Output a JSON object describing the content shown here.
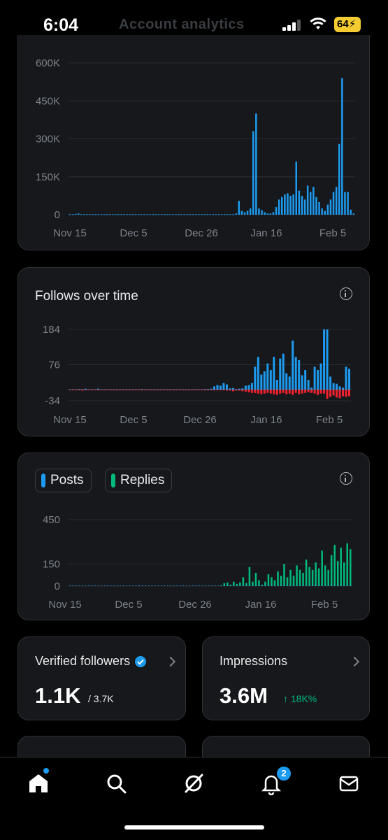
{
  "status": {
    "time": "6:04",
    "ghost_title": "Account analytics",
    "battery": "64"
  },
  "colors": {
    "blue": "#1d9bf0",
    "red": "#f4212e",
    "green": "#00ba7c",
    "grid": "#2a2d31"
  },
  "impressions_chart": {
    "y_ticks": [
      "600K",
      "450K",
      "300K",
      "150K",
      "0"
    ],
    "x_ticks": [
      "Nov 15",
      "Dec 5",
      "Dec 26",
      "Jan 16",
      "Feb 5"
    ]
  },
  "follows_card": {
    "title": "Follows over time",
    "y_ticks": [
      "184",
      "76",
      "-34"
    ],
    "x_ticks": [
      "Nov 15",
      "Dec 5",
      "Dec 26",
      "Jan 16",
      "Feb 5"
    ]
  },
  "posts_card": {
    "legend_posts": "Posts",
    "legend_replies": "Replies",
    "y_ticks": [
      "450",
      "150",
      "0"
    ],
    "x_ticks": [
      "Nov 15",
      "Dec 5",
      "Dec 26",
      "Jan 16",
      "Feb 5"
    ]
  },
  "verified_card": {
    "title": "Verified followers",
    "value": "1.1K",
    "sub": "/ 3.7K"
  },
  "impressions_card": {
    "title": "Impressions",
    "value": "3.6M",
    "change": "↑ 18K%"
  },
  "nav": {
    "notification_count": "2"
  },
  "chart_data": [
    {
      "type": "bar",
      "series": [
        {
          "values": [
            2,
            2,
            3,
            5,
            2,
            2,
            2,
            2,
            2,
            2,
            2,
            2,
            2,
            2,
            2,
            2,
            2,
            2,
            2,
            2,
            2,
            2,
            2,
            2,
            2,
            2,
            2,
            2,
            2,
            2,
            2,
            2,
            2,
            2,
            2,
            2,
            2,
            2,
            2,
            2,
            2,
            2,
            2,
            2,
            2,
            2,
            2,
            2,
            2,
            2,
            2,
            2,
            2,
            2,
            2,
            2,
            2,
            2,
            5,
            55,
            15,
            10,
            15,
            25,
            330,
            400,
            25,
            18,
            10,
            5,
            5,
            10,
            30,
            60,
            70,
            80,
            85,
            75,
            80,
            210,
            95,
            75,
            60,
            115,
            90,
            110,
            70,
            50,
            25,
            15,
            40,
            60,
            90,
            110,
            280,
            540,
            90,
            90,
            20,
            5
          ]
        }
      ],
      "ylim": [
        0,
        600000
      ],
      "yunit": "K",
      "x_ticks": [
        "Nov 15",
        "Dec 5",
        "Dec 26",
        "Jan 16",
        "Feb 5"
      ]
    },
    {
      "type": "bar",
      "series": [
        {
          "name": "gained",
          "values": [
            1,
            1,
            1,
            2,
            1,
            3,
            1,
            1,
            1,
            3,
            1,
            1,
            1,
            1,
            1,
            1,
            1,
            1,
            1,
            1,
            1,
            1,
            1,
            2,
            1,
            1,
            1,
            1,
            1,
            1,
            1,
            1,
            1,
            1,
            1,
            1,
            1,
            1,
            1,
            1,
            1,
            1,
            1,
            2,
            2,
            3,
            10,
            14,
            12,
            20,
            16,
            4,
            5,
            2,
            3,
            4,
            12,
            14,
            20,
            70,
            100,
            46,
            56,
            80,
            60,
            100,
            30,
            95,
            110,
            50,
            40,
            150,
            100,
            90,
            44,
            60,
            30,
            6,
            70,
            60,
            80,
            184,
            184,
            40,
            20,
            18,
            10,
            6,
            70,
            64
          ]
        },
        {
          "name": "lost",
          "values": [
            -2,
            -2,
            -2,
            -2,
            -3,
            -2,
            -2,
            -2,
            -2,
            -2,
            -2,
            -2,
            -2,
            -2,
            -2,
            -2,
            -2,
            -2,
            -2,
            -2,
            -2,
            -2,
            -2,
            -2,
            -2,
            -2,
            -2,
            -2,
            -2,
            -2,
            -2,
            -2,
            -2,
            -2,
            -2,
            -2,
            -2,
            -2,
            -2,
            -2,
            -2,
            -2,
            -2,
            -2,
            -2,
            -2,
            -2,
            -2,
            -2,
            -2,
            -3,
            -3,
            -5,
            -3,
            -3,
            -5,
            -6,
            -8,
            -10,
            -10,
            -12,
            -14,
            -12,
            -10,
            -12,
            -14,
            -16,
            -12,
            -10,
            -14,
            -12,
            -16,
            -10,
            -14,
            -12,
            -10,
            -8,
            -10,
            -12,
            -16,
            -12,
            -12,
            -28,
            -22,
            -18,
            -24,
            -26,
            -20,
            -22,
            -20
          ]
        }
      ],
      "yticks": [
        184,
        76,
        -34
      ],
      "x_ticks": [
        "Nov 15",
        "Dec 5",
        "Dec 26",
        "Jan 16",
        "Feb 5"
      ]
    },
    {
      "type": "bar",
      "series": [
        {
          "name": "Posts",
          "values": [
            2,
            2,
            1,
            2,
            1,
            2,
            1,
            1,
            1,
            4,
            1,
            1,
            1,
            1,
            1,
            1,
            1,
            1,
            1,
            1,
            1,
            1,
            6,
            1,
            1,
            1,
            1,
            1,
            1,
            1,
            1,
            1,
            1,
            1,
            1,
            1,
            1,
            1,
            1,
            1,
            1,
            1,
            1,
            1,
            1,
            1,
            1,
            1,
            1,
            2,
            2,
            3,
            2,
            3,
            4,
            3,
            2,
            4,
            2,
            5,
            4,
            3,
            4,
            5,
            3,
            4,
            5,
            3,
            6,
            4,
            5,
            3,
            4,
            6,
            5,
            4,
            3,
            5,
            4,
            3,
            6,
            5,
            4,
            3,
            6,
            5,
            4,
            5,
            3,
            6
          ]
        },
        {
          "name": "Replies",
          "values": [
            0,
            0,
            0,
            0,
            0,
            0,
            0,
            0,
            0,
            0,
            0,
            0,
            0,
            0,
            0,
            0,
            0,
            0,
            0,
            0,
            0,
            0,
            0,
            0,
            0,
            0,
            0,
            0,
            0,
            0,
            0,
            0,
            0,
            0,
            0,
            0,
            0,
            0,
            0,
            0,
            0,
            0,
            0,
            0,
            0,
            0,
            0,
            0,
            5,
            20,
            25,
            10,
            30,
            15,
            25,
            60,
            20,
            130,
            30,
            90,
            40,
            10,
            30,
            80,
            60,
            40,
            100,
            70,
            150,
            60,
            110,
            70,
            140,
            110,
            90,
            180,
            130,
            110,
            160,
            120,
            240,
            140,
            110,
            210,
            280,
            170,
            260,
            160,
            290,
            250
          ]
        }
      ],
      "yticks": [
        450,
        150,
        0
      ],
      "x_ticks": [
        "Nov 15",
        "Dec 5",
        "Dec 26",
        "Jan 16",
        "Feb 5"
      ]
    }
  ]
}
